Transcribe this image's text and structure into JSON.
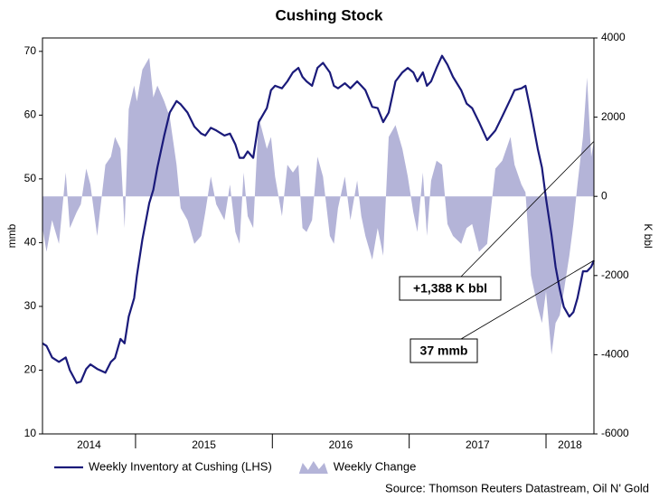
{
  "chart_data": {
    "type": "line",
    "title": "Cushing Stock",
    "ylabel": "mmb",
    "y2label": "K bbl",
    "source": "Source: Thomson Reuters Datastream, Oil N' Gold",
    "annotations": [
      "+1,388 K bbl",
      "37 mmb"
    ],
    "xlim": [
      2014.32,
      2018.35
    ],
    "xticks": [
      2014,
      2015,
      2016,
      2017,
      2018
    ],
    "ylim": [
      10,
      72.1
    ],
    "yticks": [
      10,
      20,
      30,
      40,
      50,
      60,
      70
    ],
    "y2lim": [
      -6000,
      4000
    ],
    "y2ticks": [
      -6000,
      -4000,
      -2000,
      0,
      2000,
      4000
    ],
    "x": [
      2014.32,
      2014.35,
      2014.39,
      2014.44,
      2014.49,
      2014.52,
      2014.57,
      2014.6,
      2014.64,
      2014.67,
      2014.72,
      2014.78,
      2014.82,
      2014.85,
      2014.89,
      2014.92,
      2014.95,
      2014.99,
      2015.01,
      2015.05,
      2015.1,
      2015.13,
      2015.16,
      2015.21,
      2015.25,
      2015.3,
      2015.33,
      2015.38,
      2015.43,
      2015.48,
      2015.51,
      2015.55,
      2015.59,
      2015.65,
      2015.69,
      2015.73,
      2015.76,
      2015.79,
      2015.82,
      2015.86,
      2015.9,
      2015.96,
      2015.99,
      2016.02,
      2016.07,
      2016.11,
      2016.15,
      2016.19,
      2016.22,
      2016.25,
      2016.29,
      2016.33,
      2016.37,
      2016.42,
      2016.45,
      2016.48,
      2016.53,
      2016.57,
      2016.62,
      2016.65,
      2016.68,
      2016.73,
      2016.77,
      2016.81,
      2016.85,
      2016.9,
      2016.95,
      2016.99,
      2017.03,
      2017.06,
      2017.1,
      2017.13,
      2017.16,
      2017.2,
      2017.24,
      2017.28,
      2017.32,
      2017.38,
      2017.42,
      2017.46,
      2017.51,
      2017.57,
      2017.63,
      2017.68,
      2017.74,
      2017.77,
      2017.82,
      2017.85,
      2017.89,
      2017.94,
      2017.97,
      2018.0,
      2018.04,
      2018.07,
      2018.1,
      2018.13,
      2018.17,
      2018.2,
      2018.23,
      2018.27,
      2018.3,
      2018.33,
      2018.35
    ],
    "series": [
      {
        "name": "Weekly Inventory at Cushing (LHS)",
        "type": "line",
        "color": "#1a1a7a",
        "axis": "y",
        "values": [
          24.2,
          23.8,
          22.0,
          21.3,
          22.0,
          20.0,
          18.0,
          18.2,
          20.2,
          20.9,
          20.2,
          19.6,
          21.3,
          21.9,
          24.9,
          24.2,
          28.4,
          31.3,
          34.8,
          40.5,
          46.2,
          48.3,
          51.8,
          56.8,
          60.4,
          62.2,
          61.7,
          60.4,
          58.2,
          57.1,
          56.8,
          58.0,
          57.6,
          56.8,
          57.1,
          55.4,
          53.3,
          53.3,
          54.3,
          53.3,
          58.9,
          61.1,
          63.9,
          64.6,
          64.2,
          65.3,
          66.7,
          67.4,
          66.0,
          65.3,
          64.6,
          67.4,
          68.2,
          66.7,
          64.6,
          64.2,
          65.0,
          64.2,
          65.3,
          64.6,
          63.9,
          61.3,
          61.1,
          58.9,
          60.4,
          65.3,
          66.7,
          67.4,
          66.7,
          65.3,
          66.7,
          64.6,
          65.3,
          67.4,
          69.3,
          67.9,
          66.0,
          63.9,
          61.8,
          61.1,
          58.9,
          56.1,
          57.6,
          59.8,
          62.5,
          63.9,
          64.2,
          64.6,
          60.4,
          54.7,
          51.8,
          46.9,
          41.2,
          36.2,
          32.7,
          29.9,
          28.4,
          29.1,
          31.3,
          35.5,
          35.5,
          36.2,
          37.2
        ]
      },
      {
        "name": "Weekly Change",
        "type": "area",
        "color": "#b4b4d8",
        "axis": "y2",
        "values": [
          -800,
          -1400,
          -600,
          -1200,
          600,
          -800,
          -400,
          -200,
          700,
          300,
          -1000,
          800,
          1000,
          1500,
          1200,
          -800,
          2200,
          2800,
          2400,
          3200,
          3500,
          2500,
          2800,
          2400,
          2000,
          800,
          -300,
          -600,
          -1200,
          -1000,
          -400,
          500,
          -200,
          -600,
          300,
          -900,
          -1200,
          600,
          -500,
          -800,
          2000,
          1200,
          1500,
          500,
          -500,
          800,
          600,
          800,
          -800,
          -900,
          -600,
          1000,
          500,
          -1000,
          -1200,
          -300,
          500,
          -600,
          400,
          -500,
          -1000,
          -1600,
          -800,
          -1500,
          1500,
          1800,
          1200,
          500,
          -400,
          -900,
          600,
          -1000,
          400,
          900,
          800,
          -700,
          -1000,
          -1200,
          -800,
          -700,
          -1400,
          -1200,
          700,
          900,
          1500,
          800,
          300,
          100,
          -2000,
          -2800,
          -3200,
          -2400,
          -4000,
          -3200,
          -3000,
          -2400,
          -1500,
          -700,
          300,
          1500,
          3000,
          1000,
          1388
        ]
      }
    ]
  }
}
